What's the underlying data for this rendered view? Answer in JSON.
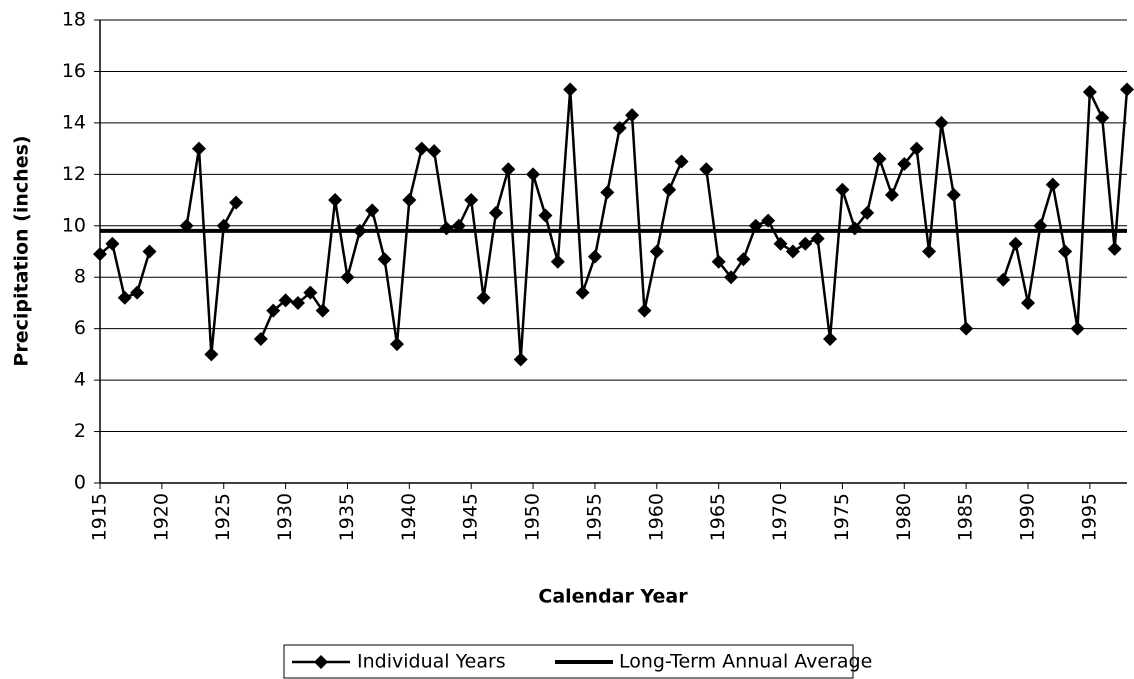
{
  "chart_data": {
    "type": "line",
    "x_label": "Calendar Year",
    "y_label": "Precipitation (inches)",
    "x": [
      1915,
      1916,
      1917,
      1918,
      1919,
      1920,
      1921,
      1922,
      1923,
      1924,
      1925,
      1926,
      1927,
      1928,
      1929,
      1930,
      1931,
      1932,
      1933,
      1934,
      1935,
      1936,
      1937,
      1938,
      1939,
      1940,
      1941,
      1942,
      1943,
      1944,
      1945,
      1946,
      1947,
      1948,
      1949,
      1950,
      1951,
      1952,
      1953,
      1954,
      1955,
      1956,
      1957,
      1958,
      1959,
      1960,
      1961,
      1962,
      1963,
      1964,
      1965,
      1966,
      1967,
      1968,
      1969,
      1970,
      1971,
      1972,
      1973,
      1974,
      1975,
      1976,
      1977,
      1978,
      1979,
      1980,
      1981,
      1982,
      1983,
      1984,
      1985,
      1986,
      1987,
      1988,
      1989,
      1990,
      1991,
      1992,
      1993,
      1994,
      1995,
      1996,
      1997,
      1998
    ],
    "series": [
      {
        "name": "Individual Years",
        "color": "#000000",
        "values": [
          8.9,
          9.3,
          7.2,
          7.4,
          9.0,
          null,
          null,
          10.0,
          13.0,
          5.0,
          10.0,
          10.9,
          null,
          5.6,
          6.7,
          7.1,
          7.0,
          7.4,
          6.7,
          11.0,
          8.0,
          9.8,
          10.6,
          8.7,
          5.4,
          11.0,
          13.0,
          12.9,
          9.9,
          10.0,
          11.0,
          7.2,
          10.5,
          12.2,
          4.8,
          12.0,
          10.4,
          8.6,
          15.3,
          7.4,
          8.8,
          11.3,
          13.8,
          14.3,
          6.7,
          9.0,
          11.4,
          12.5,
          null,
          12.2,
          8.6,
          8.0,
          8.7,
          10.0,
          10.2,
          9.3,
          9.0,
          9.3,
          9.5,
          5.6,
          11.4,
          9.9,
          10.5,
          12.6,
          11.2,
          12.4,
          13.0,
          9.0,
          14.0,
          11.2,
          6.0,
          null,
          null,
          7.9,
          9.3,
          7.0,
          10.0,
          11.6,
          9.0,
          6.0,
          15.2,
          14.2,
          9.1,
          15.3
        ]
      }
    ],
    "average": {
      "name": "Long-Term Annual Average",
      "color": "#000000",
      "value": 9.8
    },
    "xlim": [
      1915,
      1998
    ],
    "xticks": [
      1915,
      1920,
      1925,
      1930,
      1935,
      1940,
      1945,
      1950,
      1955,
      1960,
      1965,
      1970,
      1975,
      1980,
      1985,
      1990,
      1995
    ],
    "ylim": [
      0,
      18
    ],
    "yticks": [
      0,
      2,
      4,
      6,
      8,
      10,
      12,
      14,
      16,
      18
    ],
    "grid": true,
    "legend": "bottom"
  }
}
